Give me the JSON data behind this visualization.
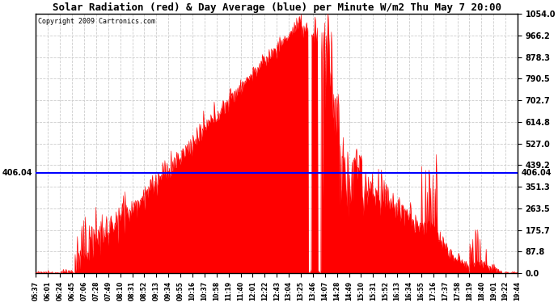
{
  "title": "Solar Radiation (red) & Day Average (blue) per Minute W/m2 Thu May 7 20:00",
  "copyright": "Copyright 2009 Cartronics.com",
  "day_average": 406.04,
  "y_max": 1054.0,
  "y_ticks": [
    0.0,
    87.8,
    175.7,
    263.5,
    351.3,
    439.2,
    527.0,
    614.8,
    702.7,
    790.5,
    878.3,
    966.2,
    1054.0
  ],
  "background_color": "#ffffff",
  "fill_color": "#ff0000",
  "line_color": "#0000ff",
  "grid_color": "#cccccc",
  "x_labels": [
    "05:37",
    "06:01",
    "06:24",
    "06:45",
    "07:06",
    "07:28",
    "07:49",
    "08:10",
    "08:31",
    "08:52",
    "09:13",
    "09:34",
    "09:55",
    "10:16",
    "10:37",
    "10:58",
    "11:19",
    "11:40",
    "12:01",
    "12:22",
    "12:43",
    "13:04",
    "13:25",
    "13:46",
    "14:07",
    "14:28",
    "14:49",
    "15:10",
    "15:31",
    "15:52",
    "16:13",
    "16:34",
    "16:55",
    "17:16",
    "17:37",
    "17:58",
    "18:19",
    "18:40",
    "19:01",
    "19:22",
    "19:44"
  ],
  "figsize": [
    6.9,
    3.75
  ],
  "dpi": 100
}
